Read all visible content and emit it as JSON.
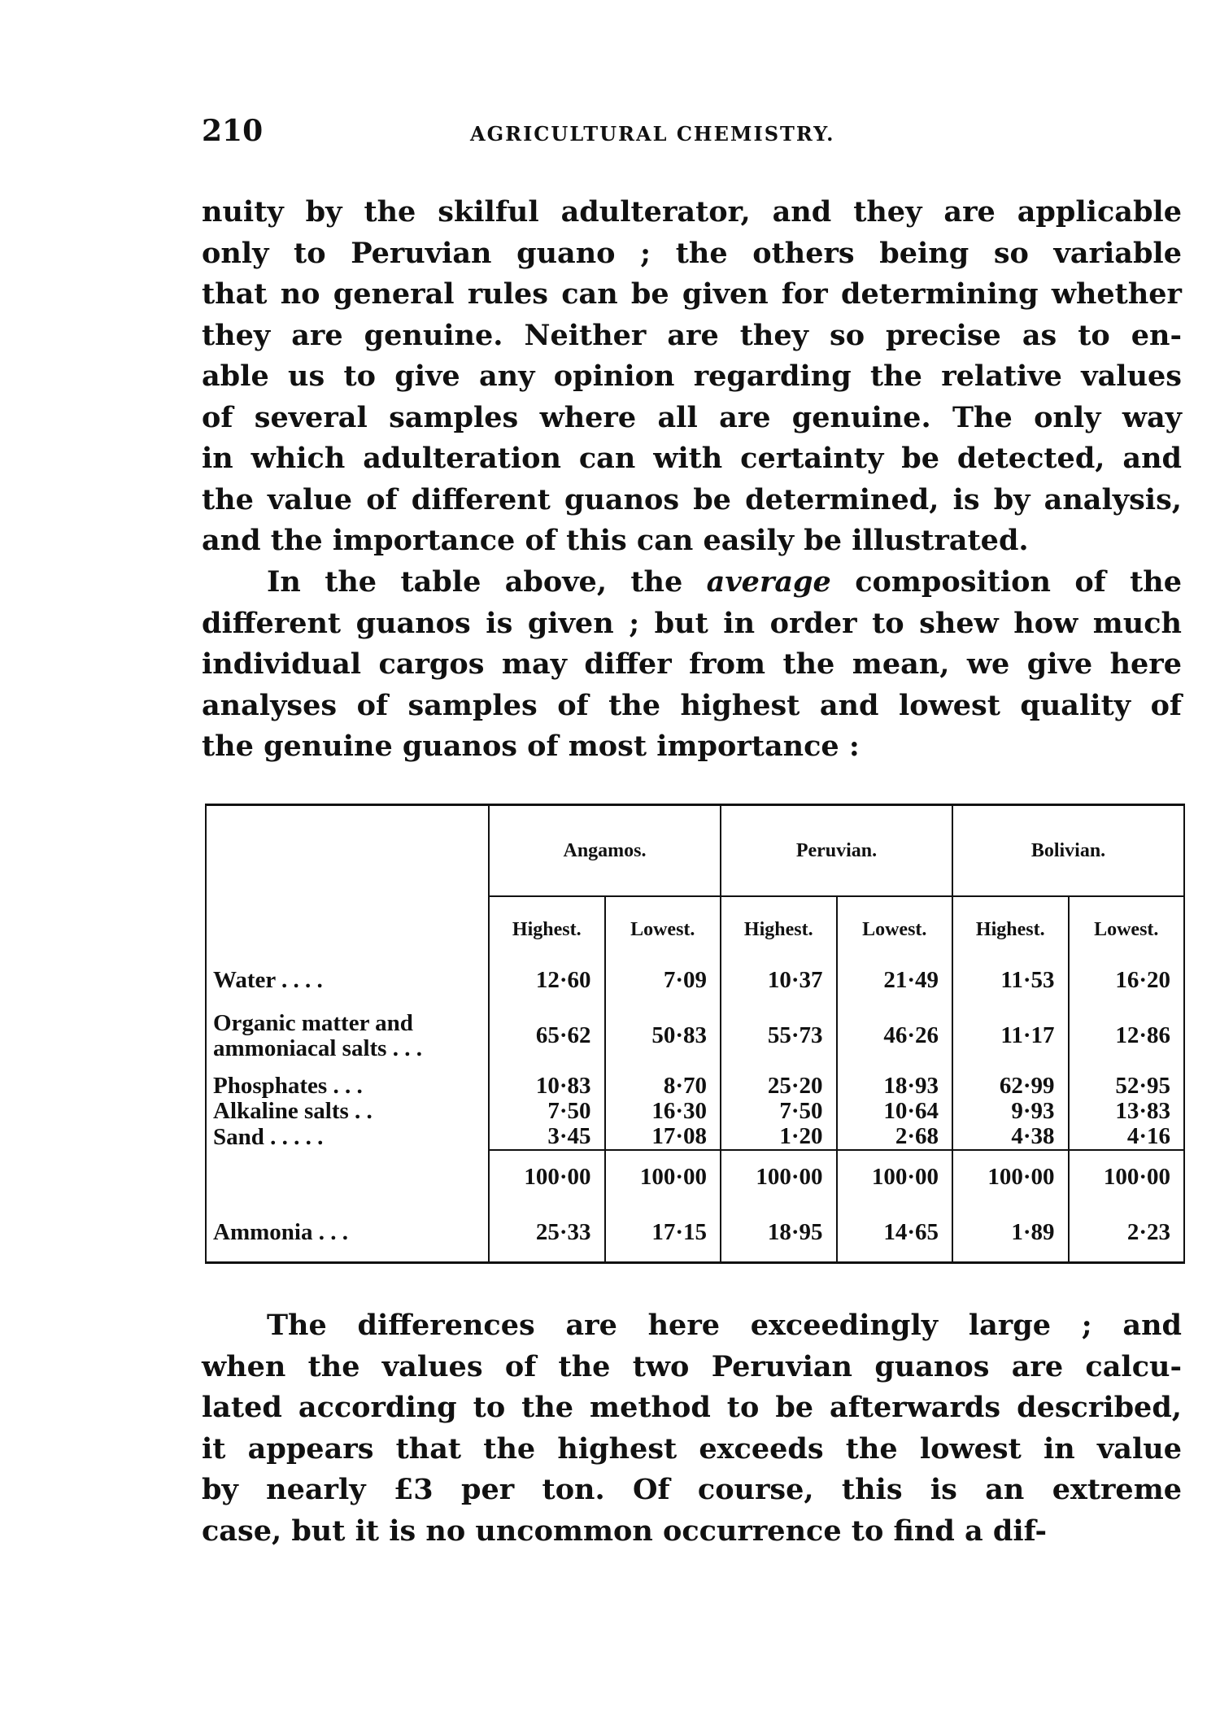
{
  "header": {
    "page_number": "210",
    "running_title": "AGRICULTURAL CHEMISTRY."
  },
  "paragraph1": [
    "nuity by the skilful adulterator, and they are applicable",
    "only to Peruvian guano ; the others being so variable",
    "that no general rules can be given for determining whether",
    "they are genuine.  Neither are they so precise as to en-",
    "able us to give any opinion regarding the relative values",
    "of several samples where all are genuine.  The only way",
    "in which adulteration can with certainty be detected, and",
    "the value of different guanos be determined, is by analysis,",
    "and the importance of this can easily be illustrated."
  ],
  "paragraph2": [
    "In the table above, the |average| composition of the",
    "different guanos is given ; but in order to shew how much",
    "individual cargos may differ from the mean, we give here",
    "analyses of samples of the highest and lowest quality of",
    "the genuine guanos of most importance :"
  ],
  "table": {
    "groups": [
      "Angamos.",
      "Peruvian.",
      "Bolivian."
    ],
    "subheaders": [
      "Highest.",
      "Lowest.",
      "Highest.",
      "Lowest.",
      "Highest.",
      "Lowest."
    ],
    "rows": [
      {
        "label": "Water . . . .",
        "values": [
          "12·60",
          "7·09",
          "10·37",
          "21·49",
          "11·53",
          "16·20"
        ]
      },
      {
        "label": "Organic matter and ammoniacal salts . . .",
        "values": [
          "65·62",
          "50·83",
          "55·73",
          "46·26",
          "11·17",
          "12·86"
        ]
      },
      {
        "label": "Phosphates . . .",
        "values": [
          "10·83",
          "8·70",
          "25·20",
          "18·93",
          "62·99",
          "52·95"
        ]
      },
      {
        "label": "Alkaline salts . .",
        "values": [
          "7·50",
          "16·30",
          "7·50",
          "10·64",
          "9·93",
          "13·83"
        ]
      },
      {
        "label": "Sand . . . . .",
        "values": [
          "3·45",
          "17·08",
          "1·20",
          "2·68",
          "4·38",
          "4·16"
        ]
      }
    ],
    "totals": [
      "100·00",
      "100·00",
      "100·00",
      "100·00",
      "100·00",
      "100·00"
    ],
    "ammonia": {
      "label": "Ammonia . . .",
      "values": [
        "25·33",
        "17·15",
        "18·95",
        "14·65",
        "1·89",
        "2·23"
      ]
    }
  },
  "paragraph3": [
    "The differences are here exceedingly large ; and",
    "when the values of the two Peruvian guanos are calcu-",
    "lated according to the method to be afterwards described,",
    "it appears that the highest exceeds the lowest in value",
    "by nearly £3 per ton.  Of course, this is an extreme",
    "case, but it is no uncommon occurrence to find a dif-"
  ]
}
